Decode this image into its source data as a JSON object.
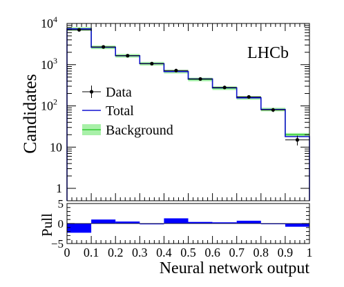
{
  "chart_data": {
    "type": "histogram",
    "ylabel": "Candidates",
    "xlabel": "Neural network output",
    "pull_ylabel": "Pull",
    "annotation": "LHCb",
    "xlim": [
      0,
      1
    ],
    "ylim": [
      0.5,
      10000
    ],
    "yscale": "log",
    "pull_ylim": [
      -5,
      5
    ],
    "x_tick_labels": [
      "0",
      "0.1",
      "0.2",
      "0.3",
      "0.4",
      "0.5",
      "0.6",
      "0.7",
      "0.8",
      "0.9",
      "1"
    ],
    "y_tick_values": [
      1,
      10,
      100,
      1000,
      10000
    ],
    "y_tick_labels": [
      {
        "base": "1",
        "exp": ""
      },
      {
        "base": "10",
        "exp": ""
      },
      {
        "base": "10",
        "exp": "2"
      },
      {
        "base": "10",
        "exp": "3"
      },
      {
        "base": "10",
        "exp": "4"
      }
    ],
    "pull_tick_labels": [
      "5",
      "0",
      "−5"
    ],
    "pull_tick_values": [
      5,
      0,
      -5
    ],
    "bin_edges": [
      0,
      0.1,
      0.2,
      0.3,
      0.4,
      0.5,
      0.6,
      0.7,
      0.8,
      0.9,
      1.0
    ],
    "legend": {
      "placement": "center-left",
      "items": [
        {
          "key": "data",
          "label": "Data"
        },
        {
          "key": "total",
          "label": "Total"
        },
        {
          "key": "background",
          "label": "Background"
        }
      ]
    },
    "colors": {
      "data": "#000000",
      "total": "#1010d0",
      "background": "#33cc33",
      "background_fill": "#a8f0a8",
      "pull": "#0000ff"
    },
    "series": [
      {
        "key": "data",
        "name": "Data",
        "x": [
          0.05,
          0.15,
          0.25,
          0.35,
          0.45,
          0.55,
          0.65,
          0.75,
          0.85,
          0.95
        ],
        "values": [
          7000,
          2700,
          1650,
          1060,
          720,
          450,
          280,
          165,
          80,
          15
        ],
        "errors": [
          84,
          52,
          41,
          33,
          27,
          21,
          17,
          13,
          9,
          4
        ]
      },
      {
        "key": "total",
        "name": "Total",
        "values": [
          7400,
          2650,
          1650,
          1060,
          680,
          450,
          275,
          157,
          82,
          18
        ]
      },
      {
        "key": "background",
        "name": "Background",
        "values": [
          7400,
          2650,
          1650,
          1060,
          680,
          440,
          270,
          157,
          82,
          20
        ],
        "band_rel": 0.1
      }
    ],
    "pulls": [
      -2.3,
      1.0,
      0.5,
      -0.2,
      1.3,
      0.4,
      0.3,
      0.7,
      -0.1,
      -0.8
    ]
  }
}
